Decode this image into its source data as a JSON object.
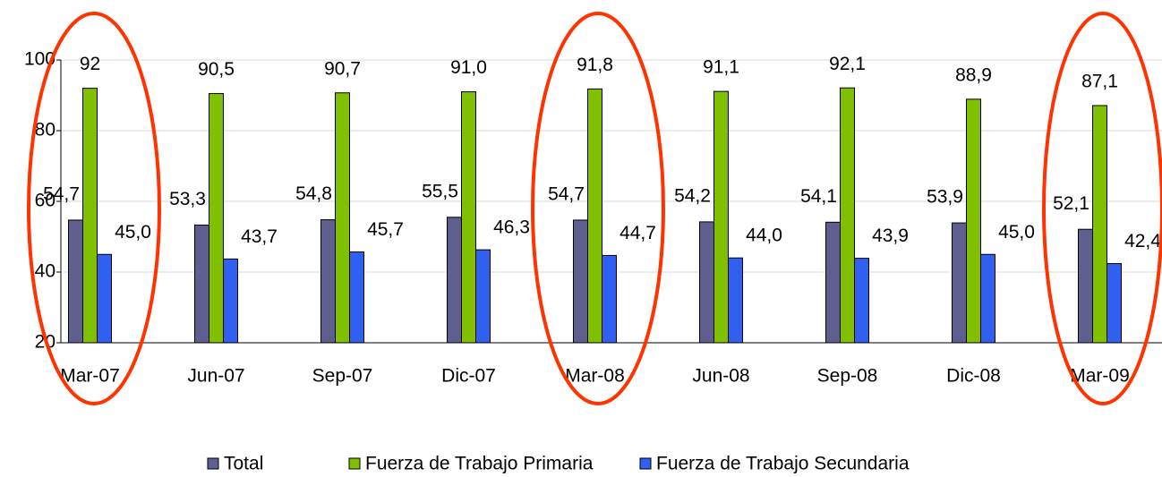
{
  "chart_data": {
    "type": "bar",
    "categories": [
      "Mar-07",
      "Jun-07",
      "Sep-07",
      "Dic-07",
      "Mar-08",
      "Jun-08",
      "Sep-08",
      "Dic-08",
      "Mar-09"
    ],
    "series": [
      {
        "name": "Total",
        "color": "#5f5f8f",
        "values": [
          54.7,
          53.3,
          54.8,
          55.5,
          54.7,
          54.2,
          54.1,
          53.9,
          52.1
        ],
        "value_labels": [
          "54,7",
          "53,3",
          "54,8",
          "55,5",
          "54,7",
          "54,2",
          "54,1",
          "53,9",
          "52,1"
        ]
      },
      {
        "name": "Fuerza de Trabajo Primaria",
        "color": "#80c000",
        "values": [
          92,
          90.5,
          90.7,
          91.0,
          91.8,
          91.1,
          92.1,
          88.9,
          87.1
        ],
        "value_labels": [
          "92",
          "90,5",
          "90,7",
          "91,0",
          "91,8",
          "91,1",
          "92,1",
          "88,9",
          "87,1"
        ]
      },
      {
        "name": "Fuerza de Trabajo Secundaria",
        "color": "#3060f0",
        "values": [
          45.0,
          43.7,
          45.7,
          46.3,
          44.7,
          44.0,
          43.9,
          45.0,
          42.4
        ],
        "value_labels": [
          "45,0",
          "43,7",
          "45,7",
          "46,3",
          "44,7",
          "44,0",
          "43,9",
          "45,0",
          "42,4"
        ]
      }
    ],
    "ylim": [
      20,
      100
    ],
    "yticks": [
      20,
      40,
      60,
      80,
      100
    ],
    "grid": true,
    "legend": "bottom"
  }
}
